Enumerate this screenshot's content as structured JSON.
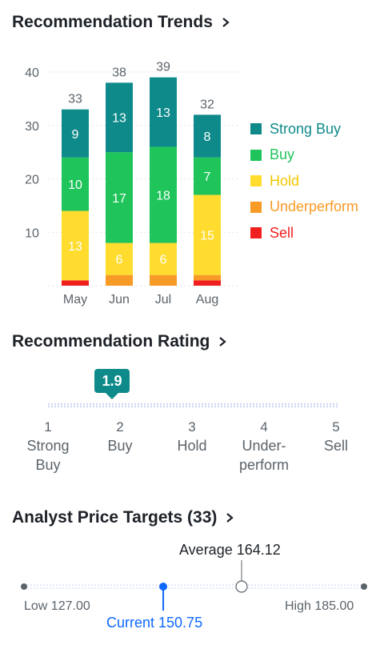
{
  "sections": {
    "trends_title": "Recommendation Trends",
    "rating_title": "Recommendation Rating",
    "targets_title": "Analyst Price Targets (33)"
  },
  "chart_data": {
    "type": "bar",
    "stacked": true,
    "categories": [
      "May",
      "Jun",
      "Jul",
      "Aug"
    ],
    "totals": [
      33,
      38,
      39,
      32
    ],
    "yticks": [
      10,
      20,
      30,
      40
    ],
    "ylim": [
      0,
      40
    ],
    "grid": true,
    "legend_position": "right",
    "series": [
      {
        "name": "Sell",
        "color": "#f01f1f",
        "values": [
          1,
          0,
          0,
          1
        ]
      },
      {
        "name": "Underperform",
        "color": "#f79a26",
        "values": [
          0,
          2,
          2,
          1
        ]
      },
      {
        "name": "Hold",
        "color": "#ffdc2e",
        "values": [
          13,
          6,
          6,
          15
        ]
      },
      {
        "name": "Buy",
        "color": "#1fc45a",
        "values": [
          10,
          17,
          18,
          7
        ]
      },
      {
        "name": "Strong Buy",
        "color": "#0f8a8a",
        "values": [
          9,
          13,
          13,
          8
        ]
      }
    ],
    "legend": [
      {
        "name": "Strong Buy",
        "color": "#0f8a8a",
        "text_color": "#0f8a8a"
      },
      {
        "name": "Buy",
        "color": "#1fc45a",
        "text_color": "#1fc45a"
      },
      {
        "name": "Hold",
        "color": "#ffdc2e",
        "text_color": "#f0c800"
      },
      {
        "name": "Underperform",
        "color": "#f79a26",
        "text_color": "#f79a26"
      },
      {
        "name": "Sell",
        "color": "#f01f1f",
        "text_color": "#f01f1f"
      }
    ]
  },
  "rating": {
    "value": "1.9",
    "value_numeric": 1.9,
    "scale": [
      {
        "num": "1",
        "line1": "Strong",
        "line2": "Buy"
      },
      {
        "num": "2",
        "line1": "Buy",
        "line2": ""
      },
      {
        "num": "3",
        "line1": "Hold",
        "line2": ""
      },
      {
        "num": "4",
        "line1": "Under-",
        "line2": "perform"
      },
      {
        "num": "5",
        "line1": "Sell",
        "line2": ""
      }
    ]
  },
  "price_targets": {
    "low": 127.0,
    "high": 185.0,
    "average": 164.12,
    "current": 150.75,
    "low_label": "Low 127.00",
    "high_label": "High 185.00",
    "average_label": "Average 164.12",
    "current_label": "Current 150.75",
    "current_color": "#0f69ff"
  }
}
